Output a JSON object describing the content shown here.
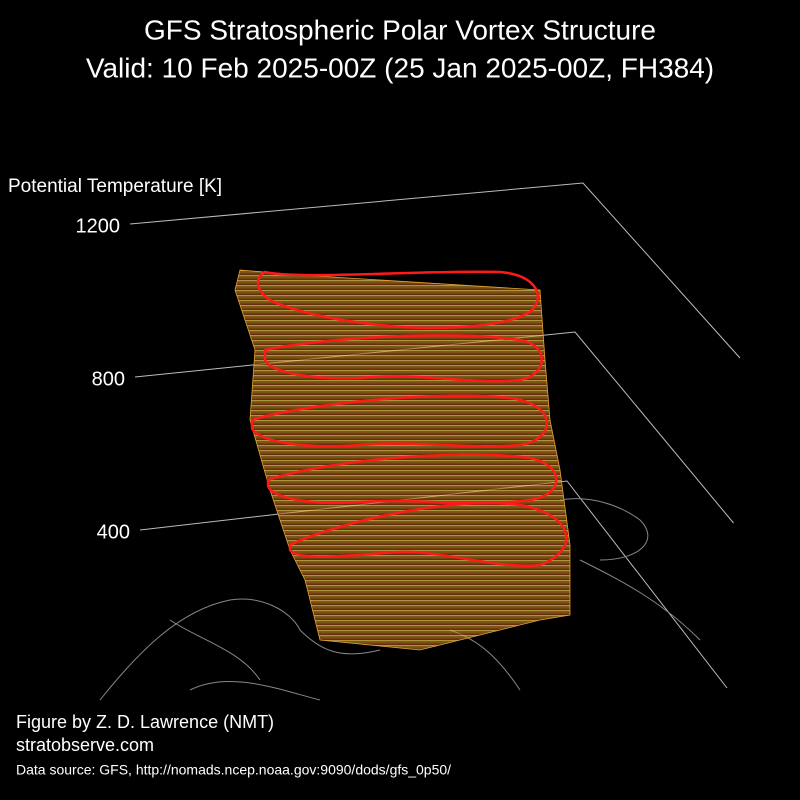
{
  "chart_data": {
    "type": "vortex3d",
    "title": [
      "GFS Stratospheric Polar Vortex Structure",
      "Valid: 10 Feb 2025-00Z  (25 Jan 2025-00Z, FH384)"
    ],
    "axis_label": "Potential Temperature [K]",
    "ylim": [
      400,
      1200
    ],
    "yticks": [
      400,
      800,
      1200
    ],
    "grid": true,
    "grid_color": "#bbbbbb"
  },
  "credits": [
    "Figure by Z. D. Lawrence (NMT)",
    "stratobserve.com",
    "Data source: GFS, http://nomads.ncep.noaa.gov:9090/dods/gfs_0p50/"
  ]
}
